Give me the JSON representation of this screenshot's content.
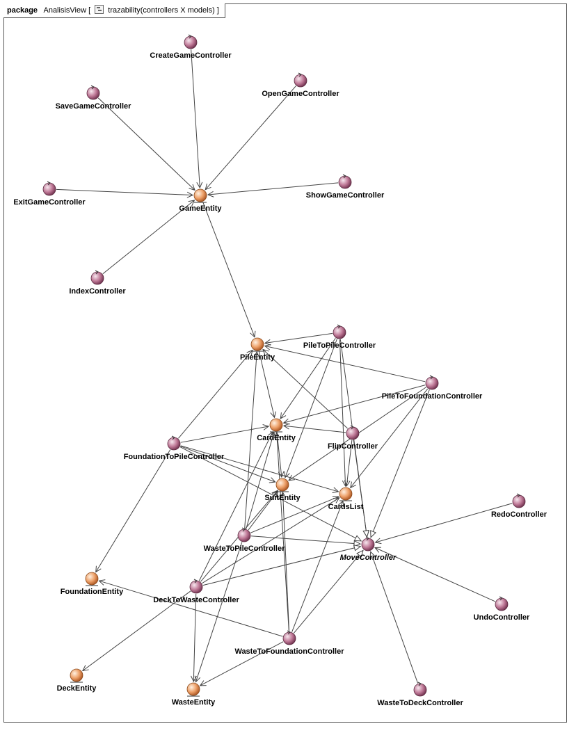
{
  "header": {
    "keyword": "package",
    "package_name": "AnalisisView",
    "bracket_open": "[",
    "diagram_name": "trazability(controllers X models)",
    "bracket_close": "]"
  },
  "colors": {
    "controller_fill": "#a5577a",
    "entity_fill": "#e8894a",
    "line": "#444444"
  },
  "nodes": [
    {
      "id": "CreateGameController",
      "label": "CreateGameController",
      "kind": "controller"
    },
    {
      "id": "SaveGameController",
      "label": "SaveGameController",
      "kind": "controller"
    },
    {
      "id": "OpenGameController",
      "label": "OpenGameController",
      "kind": "controller"
    },
    {
      "id": "ExitGameController",
      "label": "ExitGameController",
      "kind": "controller"
    },
    {
      "id": "ShowGameController",
      "label": "ShowGameController",
      "kind": "controller"
    },
    {
      "id": "GameEntity",
      "label": "GameEntity",
      "kind": "entity"
    },
    {
      "id": "IndexController",
      "label": "IndexController",
      "kind": "controller"
    },
    {
      "id": "PileEntity",
      "label": "PileEntity",
      "kind": "entity"
    },
    {
      "id": "PileToPileController",
      "label": "PileToPileController",
      "kind": "controller"
    },
    {
      "id": "PileToFoundationController",
      "label": "PileToFoundationController",
      "kind": "controller"
    },
    {
      "id": "CardEntity",
      "label": "CardEntity",
      "kind": "entity"
    },
    {
      "id": "FlipController",
      "label": "FlipController",
      "kind": "controller"
    },
    {
      "id": "FoundationToPileController",
      "label": "FoundationToPileController",
      "kind": "controller"
    },
    {
      "id": "SuitEntity",
      "label": "SuitEntity",
      "kind": "entity"
    },
    {
      "id": "CardsList",
      "label": "CardsList",
      "kind": "entity"
    },
    {
      "id": "RedoController",
      "label": "RedoController",
      "kind": "controller"
    },
    {
      "id": "WasteToPileController",
      "label": "WasteToPileController",
      "kind": "controller"
    },
    {
      "id": "MoveController",
      "label": "MoveController",
      "kind": "controller",
      "italic": true
    },
    {
      "id": "FoundationEntity",
      "label": "FoundationEntity",
      "kind": "entity"
    },
    {
      "id": "DeckToWasteController",
      "label": "DeckToWasteController",
      "kind": "controller"
    },
    {
      "id": "UndoController",
      "label": "UndoController",
      "kind": "controller"
    },
    {
      "id": "WasteToFoundationController",
      "label": "WasteToFoundationController",
      "kind": "controller"
    },
    {
      "id": "DeckEntity",
      "label": "DeckEntity",
      "kind": "entity"
    },
    {
      "id": "WasteEntity",
      "label": "WasteEntity",
      "kind": "entity"
    },
    {
      "id": "WasteToDeckController",
      "label": "WasteToDeckController",
      "kind": "controller"
    }
  ],
  "edges": [
    {
      "from": "CreateGameController",
      "to": "GameEntity",
      "type": "association"
    },
    {
      "from": "SaveGameController",
      "to": "GameEntity",
      "type": "association"
    },
    {
      "from": "OpenGameController",
      "to": "GameEntity",
      "type": "association"
    },
    {
      "from": "ExitGameController",
      "to": "GameEntity",
      "type": "association"
    },
    {
      "from": "ShowGameController",
      "to": "GameEntity",
      "type": "association"
    },
    {
      "from": "IndexController",
      "to": "GameEntity",
      "type": "association"
    },
    {
      "from": "GameEntity",
      "to": "PileEntity",
      "type": "association"
    },
    {
      "from": "PileToPileController",
      "to": "PileEntity",
      "type": "association"
    },
    {
      "from": "PileToPileController",
      "to": "CardEntity",
      "type": "association"
    },
    {
      "from": "PileToPileController",
      "to": "SuitEntity",
      "type": "association"
    },
    {
      "from": "PileToPileController",
      "to": "CardsList",
      "type": "association"
    },
    {
      "from": "PileToPileController",
      "to": "MoveController",
      "type": "generalization"
    },
    {
      "from": "PileToFoundationController",
      "to": "PileEntity",
      "type": "association"
    },
    {
      "from": "PileToFoundationController",
      "to": "CardEntity",
      "type": "association"
    },
    {
      "from": "PileToFoundationController",
      "to": "SuitEntity",
      "type": "association"
    },
    {
      "from": "PileToFoundationController",
      "to": "CardsList",
      "type": "association"
    },
    {
      "from": "PileToFoundationController",
      "to": "MoveController",
      "type": "generalization"
    },
    {
      "from": "FlipController",
      "to": "PileEntity",
      "type": "association"
    },
    {
      "from": "FlipController",
      "to": "CardEntity",
      "type": "association"
    },
    {
      "from": "FlipController",
      "to": "CardsList",
      "type": "association"
    },
    {
      "from": "FlipController",
      "to": "MoveController",
      "type": "generalization"
    },
    {
      "from": "FoundationToPileController",
      "to": "PileEntity",
      "type": "association"
    },
    {
      "from": "FoundationToPileController",
      "to": "CardEntity",
      "type": "association"
    },
    {
      "from": "FoundationToPileController",
      "to": "SuitEntity",
      "type": "association"
    },
    {
      "from": "FoundationToPileController",
      "to": "CardsList",
      "type": "association"
    },
    {
      "from": "FoundationToPileController",
      "to": "FoundationEntity",
      "type": "association"
    },
    {
      "from": "FoundationToPileController",
      "to": "MoveController",
      "type": "generalization"
    },
    {
      "from": "PileEntity",
      "to": "CardEntity",
      "type": "association"
    },
    {
      "from": "CardEntity",
      "to": "SuitEntity",
      "type": "association"
    },
    {
      "from": "RedoController",
      "to": "MoveController",
      "type": "association"
    },
    {
      "from": "UndoController",
      "to": "MoveController",
      "type": "association"
    },
    {
      "from": "WasteToDeckController",
      "to": "MoveController",
      "type": "generalization"
    },
    {
      "from": "WasteToPileController",
      "to": "PileEntity",
      "type": "association"
    },
    {
      "from": "WasteToPileController",
      "to": "CardEntity",
      "type": "association"
    },
    {
      "from": "WasteToPileController",
      "to": "SuitEntity",
      "type": "association"
    },
    {
      "from": "WasteToPileController",
      "to": "CardsList",
      "type": "association"
    },
    {
      "from": "WasteToPileController",
      "to": "WasteEntity",
      "type": "association"
    },
    {
      "from": "WasteToPileController",
      "to": "MoveController",
      "type": "generalization"
    },
    {
      "from": "DeckToWasteController",
      "to": "CardEntity",
      "type": "association"
    },
    {
      "from": "DeckToWasteController",
      "to": "SuitEntity",
      "type": "association"
    },
    {
      "from": "DeckToWasteController",
      "to": "CardsList",
      "type": "association"
    },
    {
      "from": "DeckToWasteController",
      "to": "DeckEntity",
      "type": "association"
    },
    {
      "from": "DeckToWasteController",
      "to": "WasteEntity",
      "type": "association"
    },
    {
      "from": "DeckToWasteController",
      "to": "MoveController",
      "type": "generalization"
    },
    {
      "from": "WasteToFoundationController",
      "to": "CardEntity",
      "type": "association"
    },
    {
      "from": "WasteToFoundationController",
      "to": "SuitEntity",
      "type": "association"
    },
    {
      "from": "WasteToFoundationController",
      "to": "CardsList",
      "type": "association"
    },
    {
      "from": "WasteToFoundationController",
      "to": "FoundationEntity",
      "type": "association"
    },
    {
      "from": "WasteToFoundationController",
      "to": "WasteEntity",
      "type": "association"
    },
    {
      "from": "WasteToFoundationController",
      "to": "MoveController",
      "type": "generalization"
    }
  ]
}
